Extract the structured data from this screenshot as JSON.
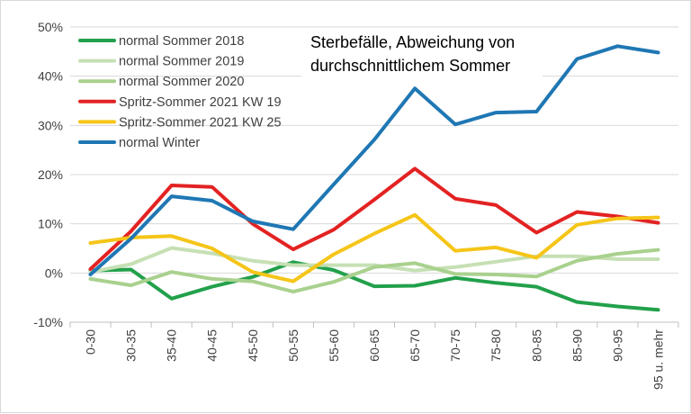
{
  "chart_data": {
    "type": "line",
    "title_lines": [
      "Sterbefälle, Abweichung von",
      "durchschnittlichem Sommer"
    ],
    "categories": [
      "0-30",
      "30-35",
      "35-40",
      "40-45",
      "45-50",
      "50-55",
      "55-60",
      "60-65",
      "65-70",
      "70-75",
      "75-80",
      "80-85",
      "85-90",
      "90-95",
      "95 u. mehr"
    ],
    "ylim": [
      -10,
      50
    ],
    "yticks": [
      -10,
      0,
      10,
      20,
      30,
      40,
      50
    ],
    "ytick_labels": [
      "-10%",
      "0%",
      "10%",
      "20%",
      "30%",
      "40%",
      "50%"
    ],
    "grid": "horizontal",
    "legend_position": "top-left",
    "series": [
      {
        "name": "normal Sommer 2018",
        "color": "#22a04b",
        "values": [
          0.5,
          0.7,
          -5.2,
          -2.8,
          -0.8,
          2.2,
          0.6,
          -2.7,
          -2.6,
          -1.0,
          -2.0,
          -2.8,
          -5.9,
          -6.8,
          -7.5
        ]
      },
      {
        "name": "normal Sommer 2019",
        "color": "#c6e0b4",
        "values": [
          0.2,
          1.8,
          5.1,
          4.0,
          2.5,
          1.6,
          1.6,
          1.6,
          0.5,
          1.2,
          2.3,
          3.4,
          3.4,
          2.8,
          2.8
        ]
      },
      {
        "name": "normal Sommer 2020",
        "color": "#a9d18e",
        "values": [
          -1.2,
          -2.5,
          0.2,
          -1.2,
          -1.7,
          -3.8,
          -1.8,
          1.2,
          2.0,
          -0.2,
          -0.3,
          -0.7,
          2.5,
          3.9,
          4.7
        ]
      },
      {
        "name": "Spritz-Sommer 2021 KW 19",
        "color": "#e32222",
        "values": [
          0.8,
          8.5,
          17.8,
          17.5,
          10.0,
          4.8,
          8.8,
          14.9,
          21.2,
          15.1,
          13.8,
          8.2,
          12.4,
          11.5,
          10.2
        ]
      },
      {
        "name": "Spritz-Sommer 2021 KW 25",
        "color": "#f5c518",
        "values": [
          6.1,
          7.2,
          7.5,
          5.0,
          0.2,
          -1.7,
          3.8,
          8.0,
          11.8,
          4.5,
          5.2,
          3.1,
          9.8,
          11.1,
          11.3
        ]
      },
      {
        "name": "normal Winter",
        "color": "#1f77b4",
        "values": [
          -0.3,
          7.0,
          15.6,
          14.7,
          10.5,
          8.9,
          18.0,
          27.1,
          37.5,
          30.2,
          32.6,
          32.8,
          43.5,
          46.1,
          44.8
        ]
      }
    ]
  }
}
